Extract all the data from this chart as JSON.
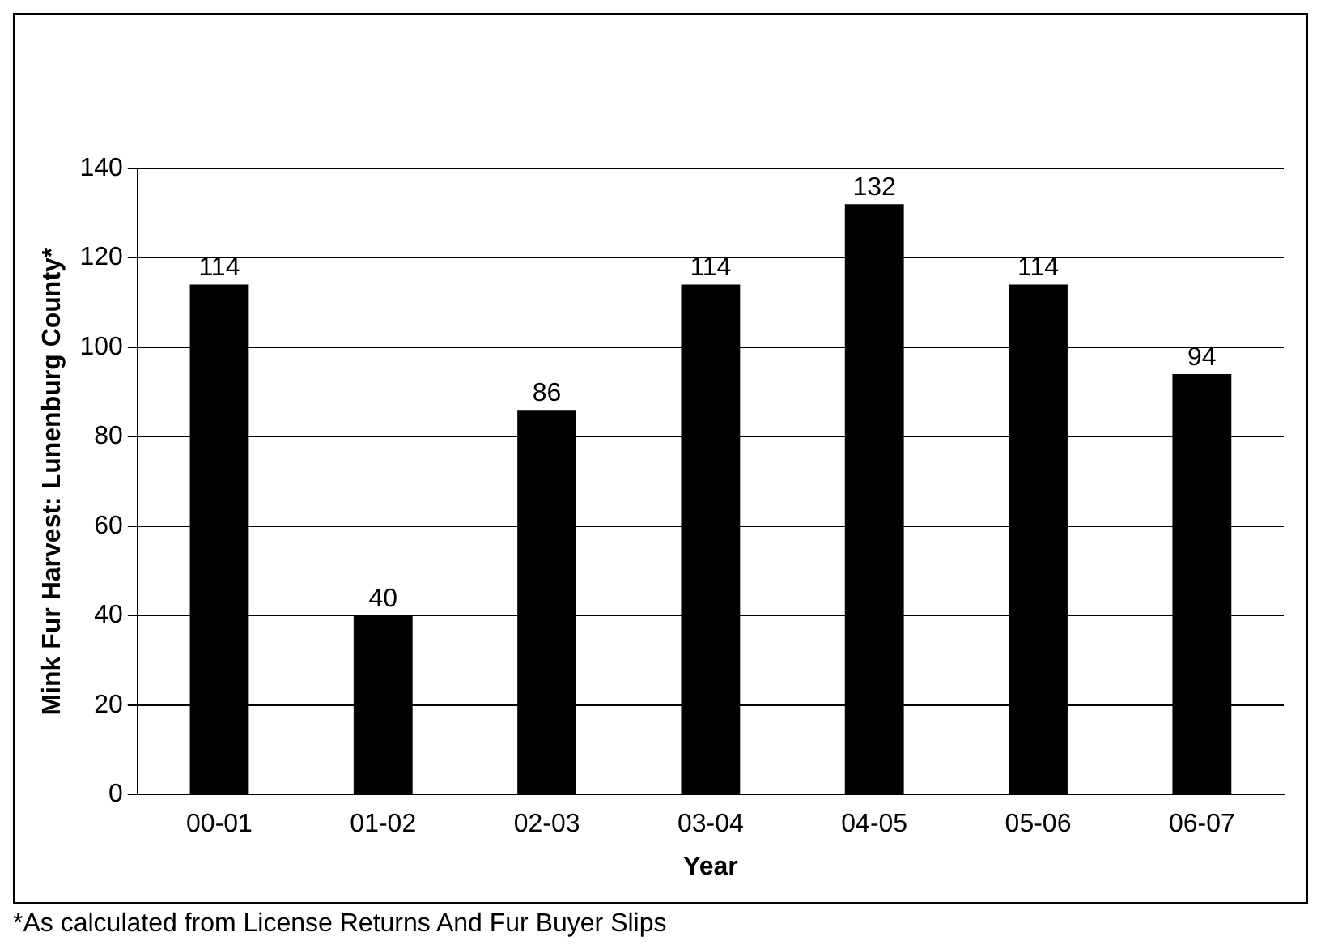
{
  "chart_data": {
    "type": "bar",
    "xlabel": "Year",
    "ylabel": "Mink Fur Harvest: Lunenburg County*",
    "categories": [
      "00-01",
      "01-02",
      "02-03",
      "03-04",
      "04-05",
      "05-06",
      "06-07"
    ],
    "values": [
      114,
      40,
      86,
      114,
      132,
      114,
      94
    ],
    "color": "#000000",
    "ylim": [
      0,
      140
    ],
    "yticks": [
      0,
      20,
      40,
      60,
      80,
      100,
      120,
      140
    ],
    "grid": "y",
    "data_labels": true,
    "annotations": [
      "*As calculated from License Returns And Fur Buyer Slips"
    ]
  }
}
